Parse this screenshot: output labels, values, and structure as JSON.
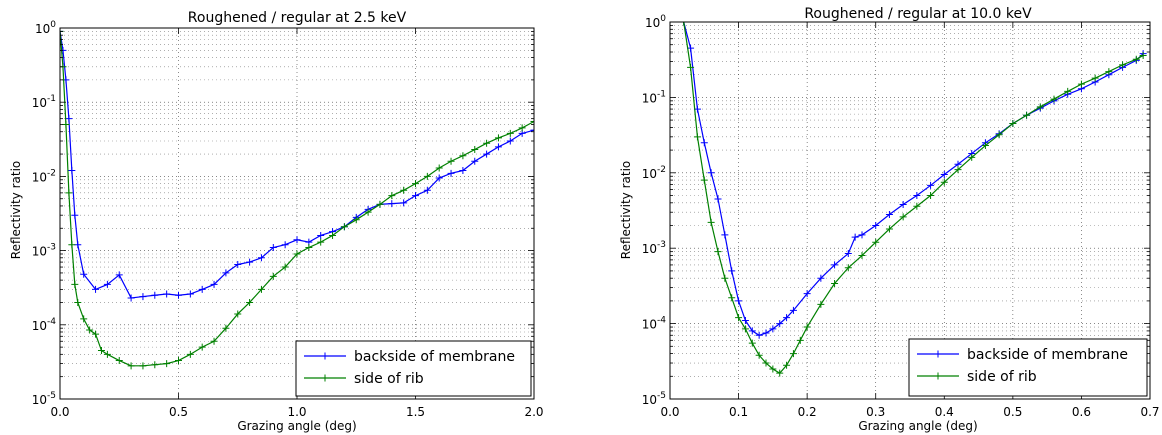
{
  "chart_data": [
    {
      "type": "line",
      "title": "Roughened / regular at 2.5 keV",
      "xlabel": "Grazing angle (deg)",
      "ylabel": "Reflectivity ratio",
      "xlim": [
        0,
        2.0
      ],
      "ylim": [
        1e-05,
        1
      ],
      "yscale": "log",
      "grid": true,
      "legend_position": "lower-right",
      "xticks": [
        0,
        0.5,
        1.0,
        1.5,
        2.0
      ],
      "xtick_labels": [
        "0.0",
        "0.5",
        "1.0",
        "1.5",
        "2.0"
      ],
      "yticks": [
        1e-05,
        0.0001,
        0.001,
        0.01,
        0.1,
        1
      ],
      "ytick_labels": [
        {
          "base": "10",
          "exp": "-5"
        },
        {
          "base": "10",
          "exp": "-4"
        },
        {
          "base": "10",
          "exp": "-3"
        },
        {
          "base": "10",
          "exp": "-2"
        },
        {
          "base": "10",
          "exp": "-1"
        },
        {
          "base": "10",
          "exp": "0"
        }
      ],
      "series": [
        {
          "name": "backside of membrane",
          "color": "#0000ff",
          "marker": "+",
          "x": [
            0.0,
            0.0125,
            0.025,
            0.0375,
            0.05,
            0.0625,
            0.075,
            0.1,
            0.15,
            0.2,
            0.25,
            0.3,
            0.35,
            0.4,
            0.45,
            0.5,
            0.55,
            0.6,
            0.65,
            0.7,
            0.75,
            0.8,
            0.85,
            0.9,
            0.95,
            1.0,
            1.05,
            1.1,
            1.15,
            1.2,
            1.25,
            1.3,
            1.35,
            1.4,
            1.45,
            1.5,
            1.55,
            1.6,
            1.65,
            1.7,
            1.75,
            1.8,
            1.85,
            1.9,
            1.95,
            2.0
          ],
          "y": [
            0.9,
            0.5,
            0.2,
            0.06,
            0.012,
            0.003,
            0.0012,
            0.00048,
            0.0003,
            0.00035,
            0.00047,
            0.00023,
            0.00024,
            0.00025,
            0.00026,
            0.00025,
            0.00026,
            0.0003,
            0.00035,
            0.0005,
            0.00065,
            0.0007,
            0.0008,
            0.0011,
            0.0012,
            0.0014,
            0.0013,
            0.0016,
            0.0018,
            0.0021,
            0.0028,
            0.0036,
            0.0042,
            0.0043,
            0.0044,
            0.0055,
            0.0065,
            0.0095,
            0.011,
            0.012,
            0.016,
            0.02,
            0.025,
            0.03,
            0.038,
            0.042
          ]
        },
        {
          "name": "side of rib",
          "color": "#008000",
          "marker": "+",
          "x": [
            0.0,
            0.0125,
            0.025,
            0.0375,
            0.05,
            0.0625,
            0.075,
            0.1,
            0.125,
            0.15,
            0.175,
            0.2,
            0.25,
            0.3,
            0.35,
            0.4,
            0.45,
            0.5,
            0.55,
            0.6,
            0.65,
            0.7,
            0.75,
            0.8,
            0.85,
            0.9,
            0.95,
            1.0,
            1.05,
            1.1,
            1.15,
            1.2,
            1.25,
            1.3,
            1.35,
            1.4,
            1.45,
            1.5,
            1.55,
            1.6,
            1.65,
            1.7,
            1.75,
            1.8,
            1.85,
            1.9,
            1.95,
            2.0
          ],
          "y": [
            0.9,
            0.3,
            0.05,
            0.006,
            0.0012,
            0.00035,
            0.0002,
            0.00012,
            8.5e-05,
            7.5e-05,
            4.5e-05,
            4e-05,
            3.3e-05,
            2.8e-05,
            2.8e-05,
            2.9e-05,
            3e-05,
            3.3e-05,
            4e-05,
            5e-05,
            6e-05,
            9e-05,
            0.00014,
            0.0002,
            0.0003,
            0.00045,
            0.0006,
            0.0009,
            0.0011,
            0.0013,
            0.0016,
            0.0021,
            0.0026,
            0.0033,
            0.0042,
            0.0055,
            0.0065,
            0.008,
            0.01,
            0.013,
            0.016,
            0.019,
            0.023,
            0.028,
            0.033,
            0.038,
            0.045,
            0.055
          ]
        }
      ]
    },
    {
      "type": "line",
      "title": "Roughened / regular at 10.0 keV",
      "xlabel": "Grazing angle (deg)",
      "ylabel": "Reflectivity ratio",
      "xlim": [
        0,
        0.7
      ],
      "ylim": [
        1e-05,
        1
      ],
      "yscale": "log",
      "grid": true,
      "legend_position": "lower-right",
      "xticks": [
        0,
        0.1,
        0.2,
        0.3,
        0.4,
        0.5,
        0.6,
        0.7
      ],
      "xtick_labels": [
        "0.0",
        "0.1",
        "0.2",
        "0.3",
        "0.4",
        "0.5",
        "0.6",
        "0.7"
      ],
      "yticks": [
        1e-05,
        0.0001,
        0.001,
        0.01,
        0.1,
        1
      ],
      "ytick_labels": [
        {
          "base": "10",
          "exp": "-5"
        },
        {
          "base": "10",
          "exp": "-4"
        },
        {
          "base": "10",
          "exp": "-3"
        },
        {
          "base": "10",
          "exp": "-2"
        },
        {
          "base": "10",
          "exp": "-1"
        },
        {
          "base": "10",
          "exp": "0"
        }
      ],
      "series": [
        {
          "name": "backside of membrane",
          "color": "#0000ff",
          "marker": "+",
          "x": [
            0.02,
            0.03,
            0.04,
            0.05,
            0.06,
            0.07,
            0.08,
            0.09,
            0.1,
            0.11,
            0.12,
            0.13,
            0.14,
            0.15,
            0.16,
            0.17,
            0.18,
            0.2,
            0.22,
            0.24,
            0.26,
            0.27,
            0.28,
            0.3,
            0.32,
            0.34,
            0.36,
            0.38,
            0.4,
            0.42,
            0.44,
            0.46,
            0.48,
            0.5,
            0.52,
            0.54,
            0.56,
            0.58,
            0.6,
            0.62,
            0.64,
            0.66,
            0.68,
            0.69
          ],
          "y": [
            1.0,
            0.45,
            0.07,
            0.025,
            0.01,
            0.0045,
            0.0015,
            0.0005,
            0.0002,
            0.00011,
            8e-05,
            7e-05,
            7.5e-05,
            8.5e-05,
            0.0001,
            0.00012,
            0.00015,
            0.00025,
            0.0004,
            0.0006,
            0.00085,
            0.0014,
            0.0015,
            0.002,
            0.0028,
            0.0038,
            0.005,
            0.0068,
            0.0095,
            0.013,
            0.018,
            0.025,
            0.033,
            0.045,
            0.058,
            0.072,
            0.09,
            0.11,
            0.13,
            0.16,
            0.2,
            0.25,
            0.31,
            0.38
          ]
        },
        {
          "name": "side of rib",
          "color": "#008000",
          "marker": "+",
          "x": [
            0.02,
            0.03,
            0.04,
            0.05,
            0.06,
            0.07,
            0.08,
            0.09,
            0.1,
            0.11,
            0.12,
            0.13,
            0.14,
            0.15,
            0.16,
            0.17,
            0.18,
            0.19,
            0.2,
            0.22,
            0.24,
            0.26,
            0.28,
            0.3,
            0.32,
            0.34,
            0.36,
            0.38,
            0.4,
            0.42,
            0.44,
            0.46,
            0.48,
            0.5,
            0.52,
            0.54,
            0.56,
            0.58,
            0.6,
            0.62,
            0.64,
            0.66,
            0.68,
            0.69
          ],
          "y": [
            1.0,
            0.25,
            0.03,
            0.008,
            0.0022,
            0.0009,
            0.0004,
            0.00022,
            0.00012,
            8.5e-05,
            5.5e-05,
            3.8e-05,
            3e-05,
            2.5e-05,
            2.2e-05,
            2.8e-05,
            4e-05,
            6e-05,
            9e-05,
            0.00018,
            0.00034,
            0.00055,
            0.0008,
            0.0012,
            0.0018,
            0.0026,
            0.0036,
            0.005,
            0.0075,
            0.011,
            0.016,
            0.023,
            0.032,
            0.045,
            0.058,
            0.075,
            0.095,
            0.12,
            0.15,
            0.18,
            0.22,
            0.27,
            0.32,
            0.36
          ]
        }
      ]
    }
  ]
}
